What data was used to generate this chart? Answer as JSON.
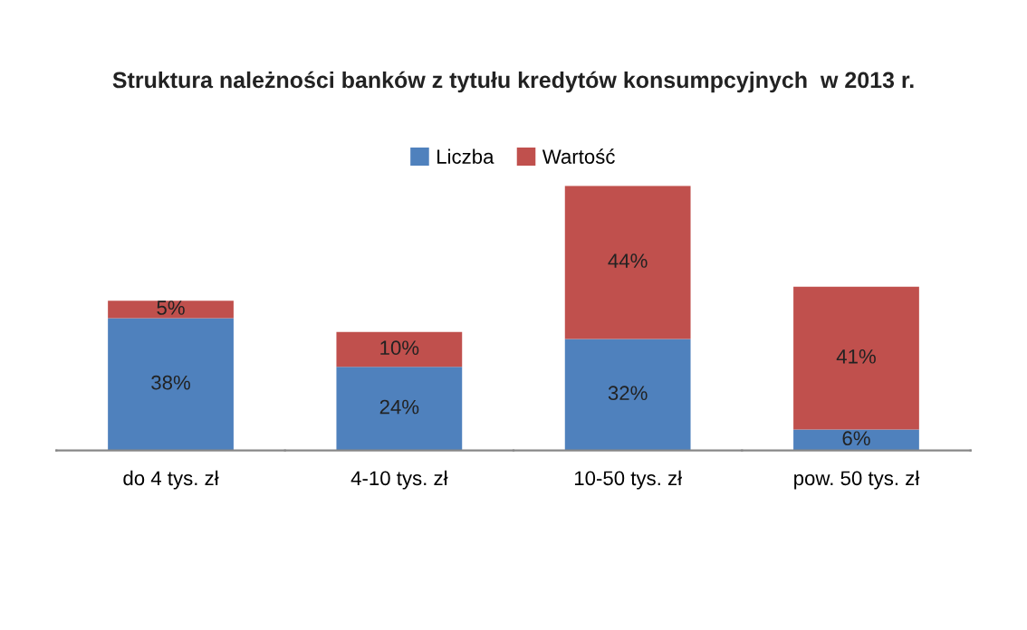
{
  "chart_data": {
    "type": "bar",
    "title": "Struktura należności banków z tytułu kredytów konsumpcyjnych  w 2013 r.",
    "categories": [
      "do 4 tys. zł",
      "4-10 tys. zł",
      "10-50 tys. zł",
      "pow. 50 tys. zł"
    ],
    "stacked": true,
    "legend": "top",
    "series": [
      {
        "name": "Liczba",
        "color": "#4f81bd",
        "values": [
          38,
          24,
          32,
          6
        ],
        "value_labels": [
          "38%",
          "24%",
          "32%",
          "6%"
        ]
      },
      {
        "name": "Wartość",
        "color": "#c0504d",
        "values": [
          5,
          10,
          44,
          41
        ],
        "value_labels": [
          "5%",
          "10%",
          "44%",
          "41%"
        ]
      }
    ]
  }
}
